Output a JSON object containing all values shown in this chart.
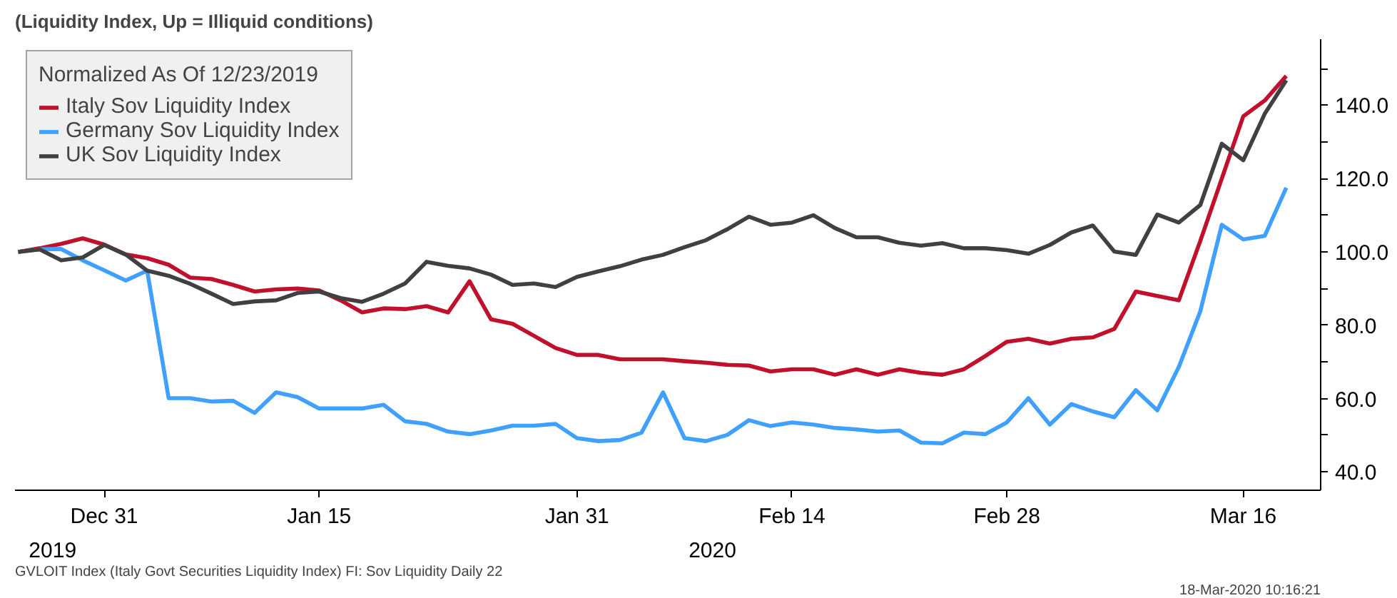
{
  "chart_data": {
    "type": "line",
    "title": "(Liquidity Index, Up = Illiquid conditions)",
    "legend_title": "Normalized As Of 12/23/2019",
    "legend": "top left",
    "grid": false,
    "line_style": "solid",
    "categories": [
      null,
      null,
      null,
      null,
      "Dec 31",
      null,
      null,
      null,
      null,
      null,
      null,
      null,
      null,
      null,
      "Jan 15",
      null,
      null,
      null,
      null,
      null,
      null,
      null,
      null,
      null,
      null,
      null,
      "Jan 31",
      null,
      null,
      null,
      null,
      null,
      null,
      null,
      null,
      null,
      "Feb 14",
      null,
      null,
      null,
      null,
      null,
      null,
      null,
      null,
      null,
      "Feb 28",
      null,
      null,
      null,
      null,
      null,
      null,
      null,
      null,
      null,
      null,
      "Mar 16",
      null,
      null
    ],
    "series": [
      {
        "name": "Italy Sov Liquidity Index",
        "color": "#c0102c",
        "values": [
          100,
          101,
          102.2,
          103.7,
          102,
          99.3,
          98.3,
          96.5,
          93,
          92.6,
          91,
          89.2,
          89.8,
          90,
          89.5,
          86.8,
          83.5,
          84.6,
          84.4,
          85.2,
          83.5,
          92,
          81.6,
          80.4,
          77.1,
          73.8,
          71.9,
          71.9,
          70.7,
          70.7,
          70.7,
          70.2,
          69.8,
          69.2,
          69,
          67.4,
          68,
          68,
          66.5,
          68,
          66.5,
          68,
          67,
          66.5,
          68,
          71.6,
          75.5,
          76.3,
          75,
          76.3,
          76.7,
          79,
          89.2,
          88,
          86.8,
          103,
          120,
          137,
          141.3,
          148
        ]
      },
      {
        "name": "Germany Sov Liquidity Index",
        "color": "#3fa0ff",
        "values": [
          100,
          100.7,
          100.8,
          97.7,
          95,
          92.2,
          94.9,
          60.1,
          60.1,
          59.2,
          59.4,
          56.1,
          61.7,
          60.4,
          57.3,
          57.3,
          57.3,
          58.3,
          53.8,
          53.1,
          51,
          50.3,
          51.3,
          52.6,
          52.6,
          53.1,
          49.2,
          48.4,
          48.7,
          50.7,
          61.7,
          49.2,
          48.4,
          50.1,
          54.1,
          52.5,
          53.5,
          52.9,
          52,
          51.6,
          51,
          51.3,
          48,
          47.8,
          50.7,
          50.3,
          53.5,
          60.1,
          52.9,
          58.5,
          56.5,
          54.9,
          62.3,
          56.8,
          68.6,
          83.8,
          107.4,
          103.4,
          104.4,
          117.5
        ]
      },
      {
        "name": "UK Sov Liquidity Index",
        "color": "#404040",
        "values": [
          100,
          100.7,
          97.7,
          98.5,
          101.9,
          99.3,
          94.9,
          93.5,
          91.3,
          88.6,
          85.8,
          86.5,
          86.8,
          88.8,
          89.2,
          87.4,
          86.4,
          88.6,
          91.4,
          97.3,
          96.2,
          95.5,
          93.8,
          91,
          91.4,
          90.4,
          93.2,
          94.7,
          96.1,
          97.9,
          99.2,
          101.3,
          103.2,
          106.2,
          109.6,
          107.4,
          108,
          110,
          106.5,
          104,
          104,
          102.5,
          101.7,
          102.4,
          101,
          101,
          100.5,
          99.5,
          101.9,
          105.3,
          107.2,
          100.1,
          99.2,
          110.2,
          108,
          112.8,
          129.5,
          125,
          137.7,
          146.8
        ]
      }
    ],
    "ylim": [
      35,
      158
    ],
    "yticks": [
      {
        "value": 40,
        "label": "40.0"
      },
      {
        "value": 60,
        "label": "60.0"
      },
      {
        "value": 80,
        "label": "80.0"
      },
      {
        "value": 100,
        "label": "100.0"
      },
      {
        "value": 120,
        "label": "120.0"
      },
      {
        "value": 140,
        "label": "140.0"
      }
    ],
    "annotations": [
      "2019",
      "2020",
      "GVLOIT Index (Italy Govt Securities Liquidity Index) FI: Sov Liquidity  Daily 22",
      "18-Mar-2020 10:16:21"
    ]
  }
}
